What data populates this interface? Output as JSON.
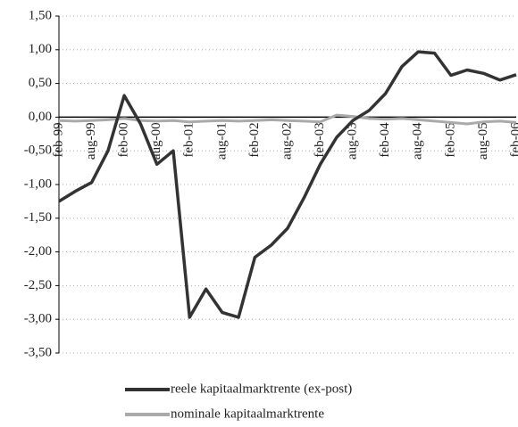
{
  "chart_data": {
    "type": "line",
    "categories": [
      "feb-99",
      null,
      "aug-99",
      null,
      "feb-00",
      null,
      "aug-00",
      null,
      "feb-01",
      null,
      "aug-01",
      null,
      "feb-02",
      null,
      "aug-02",
      null,
      "feb-03",
      null,
      "aug-03",
      null,
      "feb-04",
      null,
      "aug-04",
      null,
      "feb-05",
      null,
      "aug-05",
      null,
      "feb-06"
    ],
    "series": [
      {
        "name": "reele kapitaalmarktrente (ex-post)",
        "color": "#333333",
        "values": [
          -1.25,
          -1.1,
          -0.97,
          -0.5,
          0.32,
          -0.1,
          -0.7,
          -0.5,
          -2.97,
          -2.55,
          -2.9,
          -2.97,
          -2.08,
          -1.9,
          -1.65,
          -1.2,
          -0.7,
          -0.3,
          -0.05,
          0.1,
          0.35,
          0.75,
          0.97,
          0.95,
          0.62,
          0.7,
          0.65,
          0.55,
          0.63
        ]
      },
      {
        "name": "nominale kapitaalmarktrente",
        "color": "#aaaaaa",
        "values": [
          -0.05,
          -0.06,
          -0.05,
          -0.04,
          -0.02,
          -0.05,
          -0.06,
          -0.05,
          -0.07,
          -0.06,
          -0.05,
          -0.06,
          -0.05,
          -0.04,
          -0.05,
          -0.06,
          -0.07,
          0.03,
          0.01,
          -0.02,
          -0.03,
          -0.02,
          -0.04,
          -0.06,
          -0.08,
          -0.1,
          -0.07,
          -0.06,
          -0.08
        ]
      }
    ],
    "ylim": [
      -3.5,
      1.5
    ],
    "yticks": [
      {
        "value": 1.5,
        "label": "1,50"
      },
      {
        "value": 1.0,
        "label": "1,00"
      },
      {
        "value": 0.5,
        "label": "0,50"
      },
      {
        "value": 0,
        "label": "0,00"
      },
      {
        "value": -0.5,
        "label": "-0,50"
      },
      {
        "value": -1.0,
        "label": "-1,00"
      },
      {
        "value": -1.5,
        "label": "-1,50"
      },
      {
        "value": -2.0,
        "label": "-2,00"
      },
      {
        "value": -2.5,
        "label": "-2,50"
      },
      {
        "value": -3.0,
        "label": "-3,00"
      },
      {
        "value": -3.5,
        "label": "-3,50"
      }
    ],
    "grid": true
  }
}
